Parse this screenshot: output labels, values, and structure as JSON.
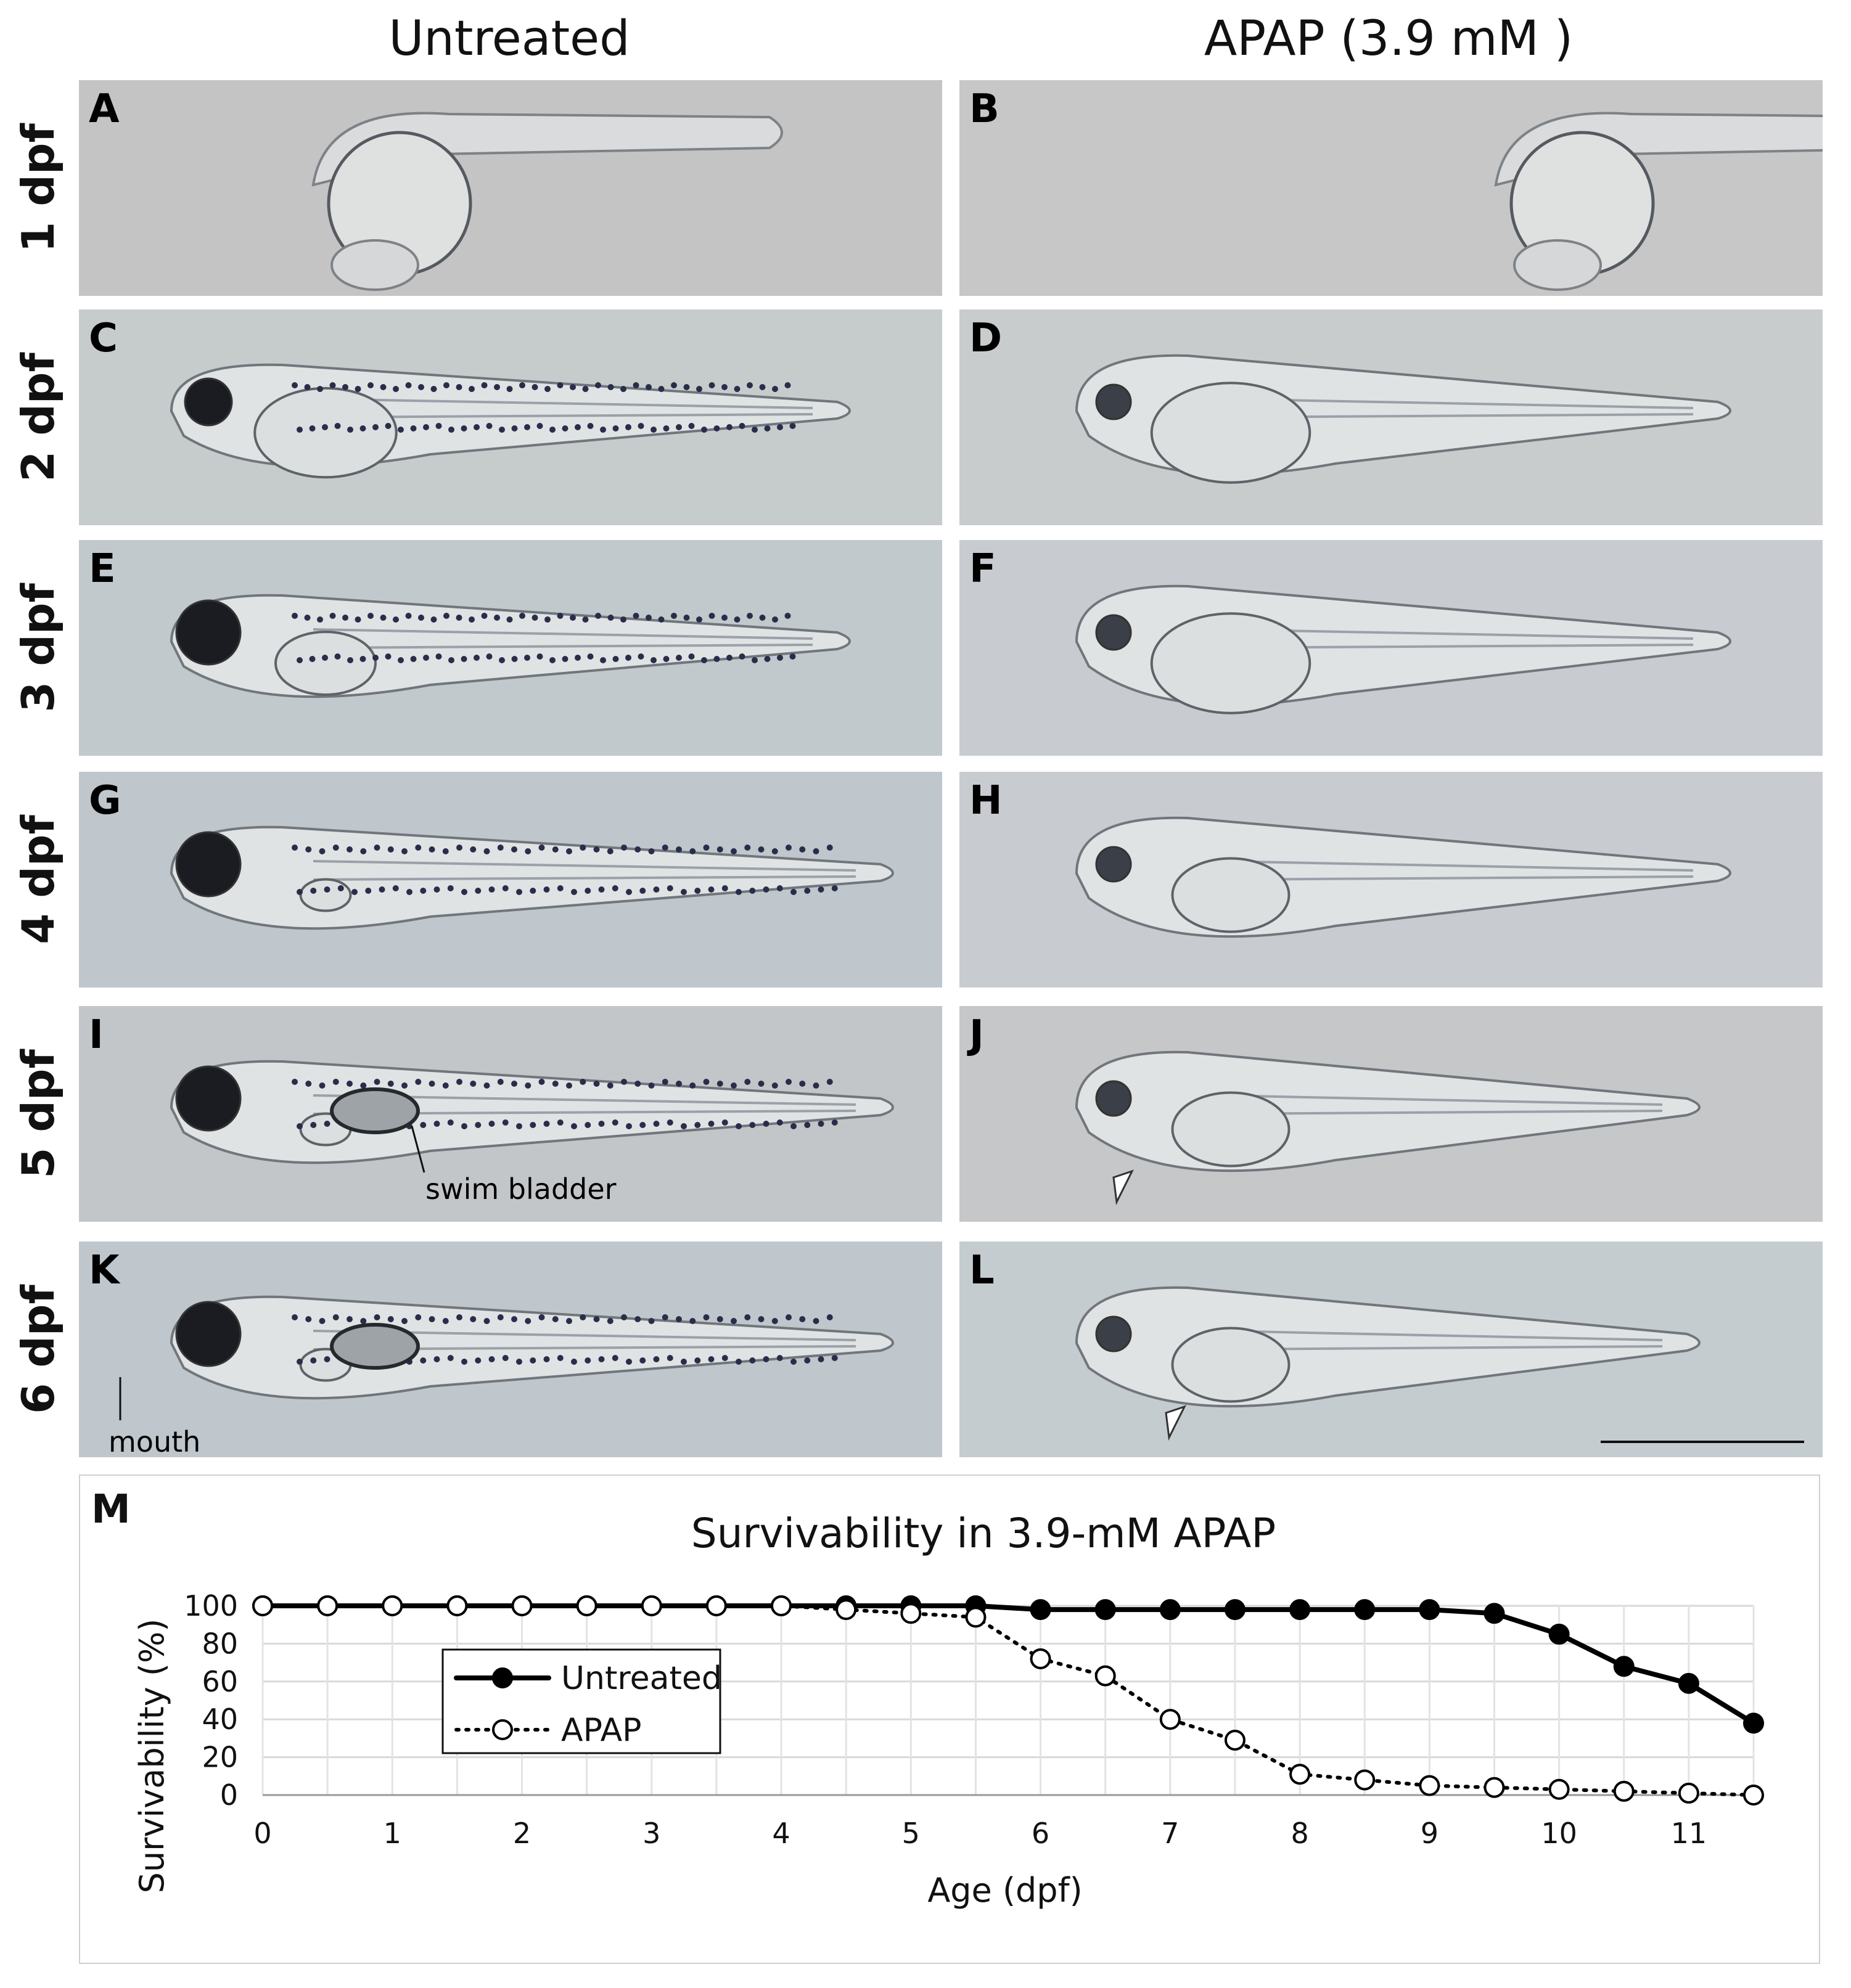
{
  "columns": [
    "Untreated",
    "APAP (3.9 mM )"
  ],
  "rows": [
    "1 dpf",
    "2 dpf",
    "3 dpf",
    "4 dpf",
    "5 dpf",
    "6 dpf"
  ],
  "panels": [
    {
      "letter": "A",
      "treatment": "Untreated",
      "age": "1 dpf",
      "bg": "#c4c4c4"
    },
    {
      "letter": "B",
      "treatment": "APAP",
      "age": "1 dpf",
      "bg": "#c7c7c7"
    },
    {
      "letter": "C",
      "treatment": "Untreated",
      "age": "2 dpf",
      "bg": "#c6cccc"
    },
    {
      "letter": "D",
      "treatment": "APAP",
      "age": "2 dpf",
      "bg": "#c9cccc"
    },
    {
      "letter": "E",
      "treatment": "Untreated",
      "age": "3 dpf",
      "bg": "#c2c9cc"
    },
    {
      "letter": "F",
      "treatment": "APAP",
      "age": "3 dpf",
      "bg": "#c8ccd0"
    },
    {
      "letter": "G",
      "treatment": "Untreated",
      "age": "4 dpf",
      "bg": "#bfc6cc"
    },
    {
      "letter": "H",
      "treatment": "APAP",
      "age": "4 dpf",
      "bg": "#c8ccd0"
    },
    {
      "letter": "I",
      "treatment": "Untreated",
      "age": "5 dpf",
      "bg": "#c3c6c8"
    },
    {
      "letter": "J",
      "treatment": "APAP",
      "age": "5 dpf",
      "bg": "#c5c7c8"
    },
    {
      "letter": "K",
      "treatment": "Untreated",
      "age": "6 dpf",
      "bg": "#bfc7cc"
    },
    {
      "letter": "L",
      "treatment": "APAP",
      "age": "6 dpf",
      "bg": "#c5ccd0"
    }
  ],
  "annotations": {
    "swim_bladder": "swim bladder",
    "mouth": "mouth"
  },
  "chart_letter": "M",
  "chart_data": {
    "type": "line",
    "title": "Survivability in 3.9-mM APAP",
    "xlabel": "Age (dpf)",
    "ylabel": "Survivability (%)",
    "xlim": [
      0,
      11.5
    ],
    "ylim": [
      0,
      100
    ],
    "x_ticks": [
      0,
      1,
      2,
      3,
      4,
      5,
      6,
      7,
      8,
      9,
      10,
      11
    ],
    "y_ticks": [
      0,
      20,
      40,
      60,
      80,
      100
    ],
    "grid": true,
    "legend_position": "upper-left",
    "series": [
      {
        "name": "Untreated",
        "style": "solid",
        "marker": "filled-circle",
        "color": "#000000",
        "x": [
          0,
          0.5,
          1,
          1.5,
          2,
          2.5,
          3,
          3.5,
          4,
          4.5,
          5,
          5.5,
          6,
          6.5,
          7,
          7.5,
          8,
          8.5,
          9,
          9.5,
          10,
          10.5,
          11,
          11.5
        ],
        "values": [
          100,
          100,
          100,
          100,
          100,
          100,
          100,
          100,
          100,
          100,
          100,
          100,
          98,
          98,
          98,
          98,
          98,
          98,
          98,
          96,
          85,
          68,
          59,
          38
        ]
      },
      {
        "name": "APAP",
        "style": "dotted",
        "marker": "open-circle",
        "color": "#000000",
        "x": [
          0,
          0.5,
          1,
          1.5,
          2,
          2.5,
          3,
          3.5,
          4,
          4.5,
          5,
          5.5,
          6,
          6.5,
          7,
          7.5,
          8,
          8.5,
          9,
          9.5,
          10,
          10.5,
          11,
          11.5
        ],
        "values": [
          100,
          100,
          100,
          100,
          100,
          100,
          100,
          100,
          100,
          98,
          96,
          94,
          72,
          63,
          40,
          29,
          11,
          8,
          5,
          4,
          3,
          2,
          1,
          0
        ]
      }
    ]
  }
}
